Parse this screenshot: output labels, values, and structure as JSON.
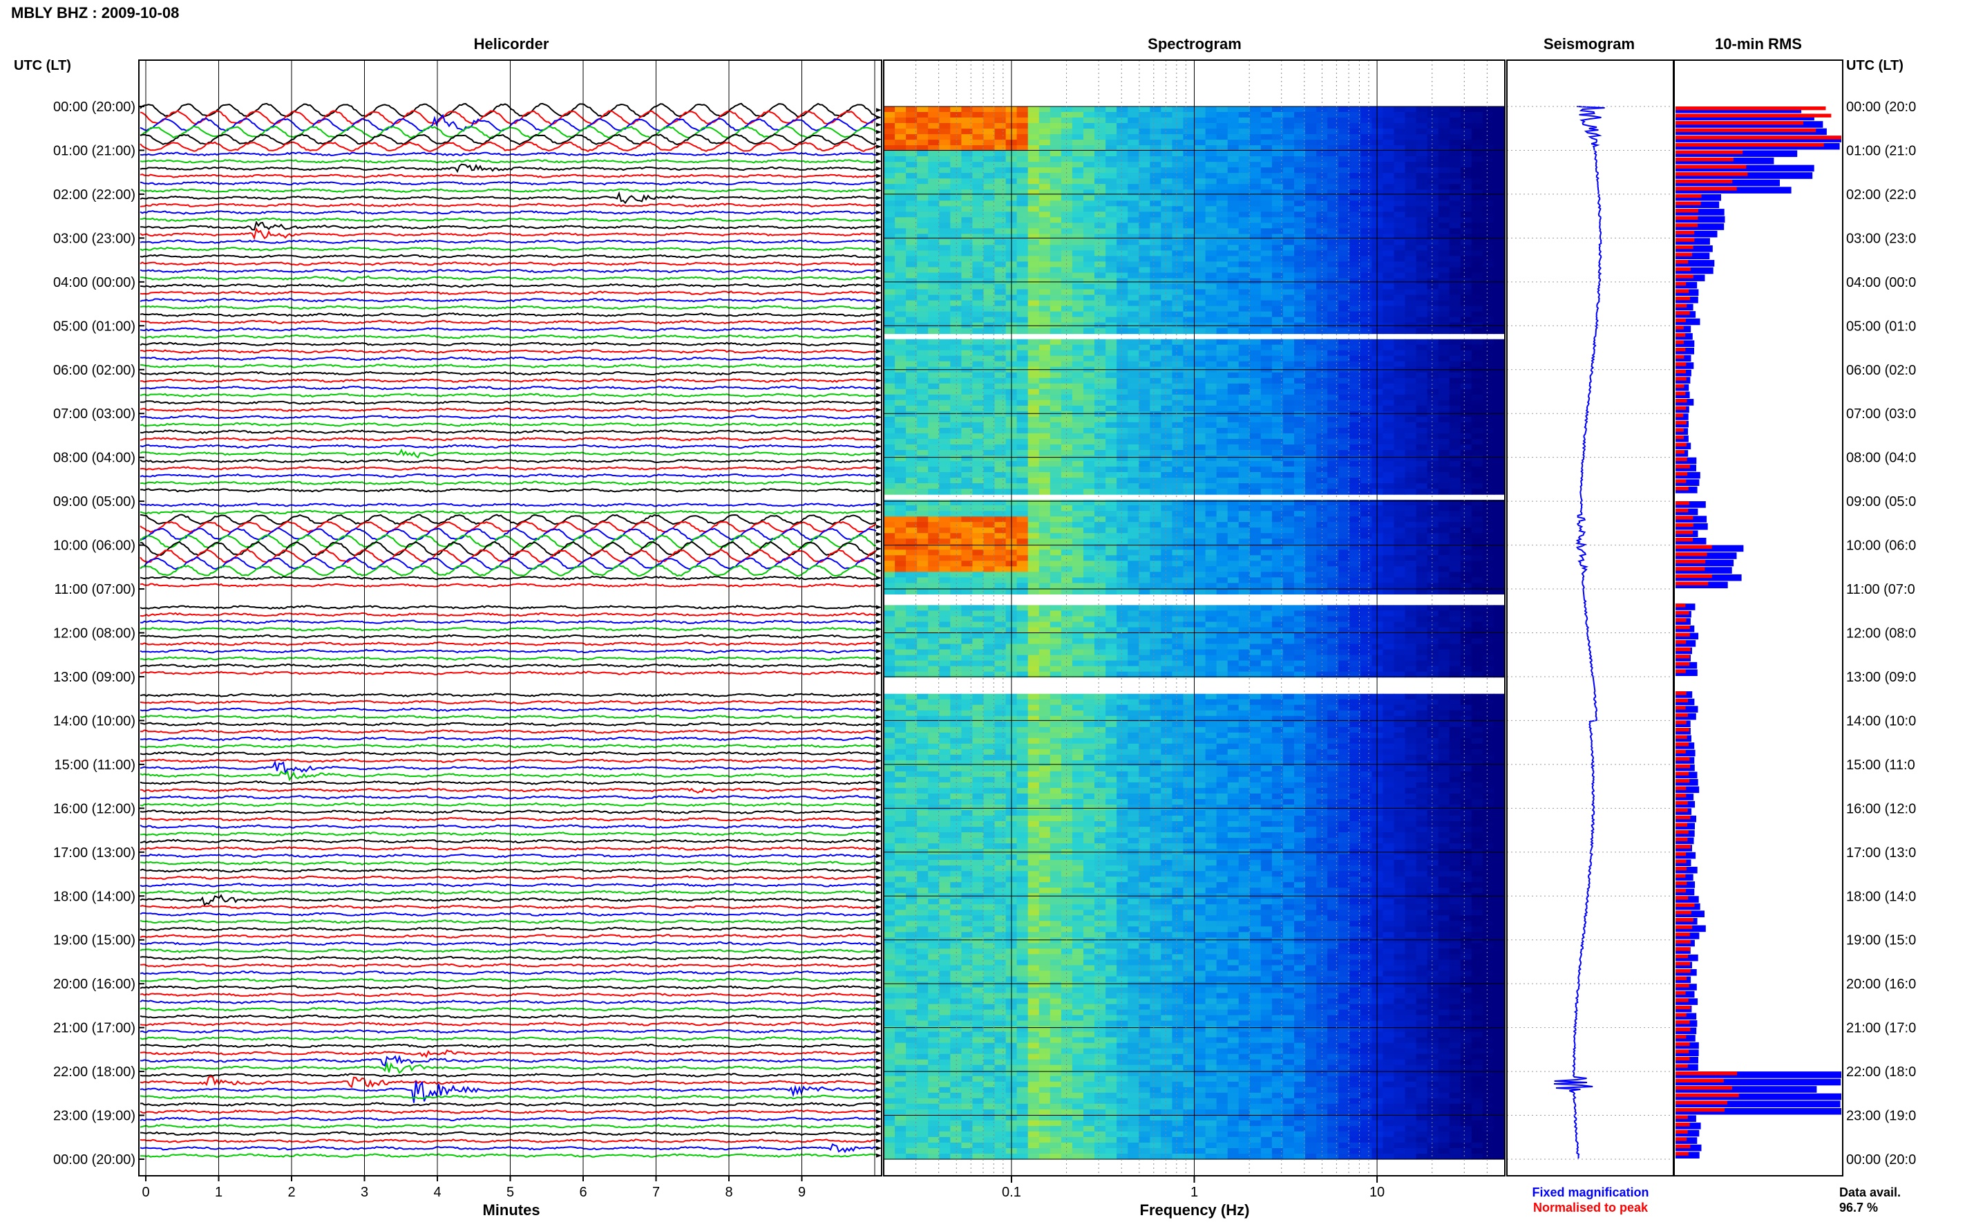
{
  "title": "MBLY BHZ : 2009-10-08",
  "panels": {
    "helicorder": "Helicorder",
    "spectrogram": "Spectrogram",
    "seismogram": "Seismogram",
    "rms": "10-min RMS"
  },
  "utc_header": "UTC (LT)",
  "utc_header_right": "UTC (LT)",
  "hour_labels": [
    "00:00 (20:00)",
    "01:00 (21:00)",
    "02:00 (22:00)",
    "03:00 (23:00)",
    "04:00 (00:00)",
    "05:00 (01:00)",
    "06:00 (02:00)",
    "07:00 (03:00)",
    "08:00 (04:00)",
    "09:00 (05:00)",
    "10:00 (06:00)",
    "11:00 (07:00)",
    "12:00 (08:00)",
    "13:00 (09:00)",
    "14:00 (10:00)",
    "15:00 (11:00)",
    "16:00 (12:00)",
    "17:00 (13:00)",
    "18:00 (14:00)",
    "19:00 (15:00)",
    "20:00 (16:00)",
    "21:00 (17:00)",
    "22:00 (18:00)",
    "23:00 (19:00)",
    "00:00 (20:00)"
  ],
  "right_hour_labels": [
    "00:00 (20:0",
    "01:00 (21:0",
    "02:00 (22:0",
    "03:00 (23:0",
    "04:00 (00:0",
    "05:00 (01:0",
    "06:00 (02:0",
    "07:00 (03:0",
    "08:00 (04:0",
    "09:00 (05:0",
    "10:00 (06:0",
    "11:00 (07:0",
    "12:00 (08:0",
    "13:00 (09:0",
    "14:00 (10:0",
    "15:00 (11:0",
    "16:00 (12:0",
    "17:00 (13:0",
    "18:00 (14:0",
    "19:00 (15:0",
    "20:00 (16:0",
    "21:00 (17:0",
    "22:00 (18:0",
    "23:00 (19:0",
    "00:00 (20:0"
  ],
  "minute_ticks": [
    "0",
    "1",
    "2",
    "3",
    "4",
    "5",
    "6",
    "7",
    "8",
    "9"
  ],
  "xlabel_minutes": "Minutes",
  "freq_ticks": [
    "0.1",
    "1",
    "10"
  ],
  "xlabel_freq": "Frequency (Hz)",
  "legend": {
    "fixed": "Fixed magnification",
    "normalised": "Normalised to peak"
  },
  "data_avail_label": "Data avail.",
  "data_avail_value": "96.7 %",
  "colors": {
    "trace_cycle": [
      "#000000",
      "#ff0000",
      "#0000ff",
      "#00cc00"
    ],
    "fixed": "#0000ff",
    "normalised": "#ff0000"
  },
  "chart_data": [
    {
      "type": "line",
      "title": "Helicorder",
      "xlabel": "Minutes",
      "xlim": [
        0,
        10
      ],
      "rows_per_hour": 6,
      "hours": 24,
      "gap_hours": [
        [
          11.0,
          11.25
        ],
        [
          13.0,
          13.33
        ],
        [
          5.1,
          5.2
        ],
        [
          7.4,
          7.45
        ],
        [
          8.8,
          8.9
        ]
      ],
      "swell_hours": [
        [
          0,
          1.0
        ],
        [
          9.3,
          10.6
        ]
      ],
      "events": [
        {
          "hour": 0.3,
          "minute": 4.1,
          "amp": 0.6
        },
        {
          "hour": 1.4,
          "minute": 4.4,
          "amp": 0.5
        },
        {
          "hour": 2.0,
          "minute": 6.6,
          "amp": 0.7
        },
        {
          "hour": 2.75,
          "minute": 1.6,
          "amp": 0.6
        },
        {
          "hour": 3.8,
          "minute": 2.8,
          "amp": 0.3
        },
        {
          "hour": 7.8,
          "minute": 3.6,
          "amp": 0.4
        },
        {
          "hour": 14.95,
          "minute": 1.9,
          "amp": 0.6
        },
        {
          "hour": 15.2,
          "minute": 2.0,
          "amp": 0.5
        },
        {
          "hour": 15.5,
          "minute": 7.6,
          "amp": 0.3
        },
        {
          "hour": 17.95,
          "minute": 0.9,
          "amp": 0.6
        },
        {
          "hour": 21.5,
          "minute": 3.9,
          "amp": 0.4
        },
        {
          "hour": 21.75,
          "minute": 3.4,
          "amp": 0.7
        },
        {
          "hour": 22.1,
          "minute": 0.9,
          "amp": 0.8
        },
        {
          "hour": 22.1,
          "minute": 2.9,
          "amp": 0.8
        },
        {
          "hour": 22.3,
          "minute": 3.8,
          "amp": 1.6
        },
        {
          "hour": 22.4,
          "minute": 9.0,
          "amp": 0.5
        },
        {
          "hour": 23.7,
          "minute": 9.5,
          "amp": 0.5
        }
      ]
    },
    {
      "type": "heatmap",
      "title": "Spectrogram",
      "xlabel": "Frequency (Hz)",
      "x_scale": "log",
      "xlim": [
        0.02,
        50
      ],
      "hours": 24
    },
    {
      "type": "line",
      "title": "Seismogram",
      "hours": 24
    },
    {
      "type": "bar",
      "title": "10-min RMS",
      "orientation": "horizontal",
      "hours": 24,
      "series": [
        {
          "name": "Fixed magnification",
          "color": "#0000ff",
          "hourly_values": [
            100,
            74,
            28,
            22,
            14,
            10,
            10,
            10,
            14,
            18,
            40,
            12,
            12,
            12,
            12,
            14,
            12,
            12,
            16,
            12,
            12,
            14,
            100,
            14
          ]
        },
        {
          "name": "Normalised to peak",
          "color": "#ff0000",
          "hourly_values": [
            100,
            42,
            14,
            10,
            8,
            6,
            6,
            6,
            8,
            10,
            20,
            8,
            8,
            8,
            8,
            8,
            8,
            8,
            10,
            8,
            8,
            8,
            36,
            8
          ]
        }
      ]
    }
  ]
}
